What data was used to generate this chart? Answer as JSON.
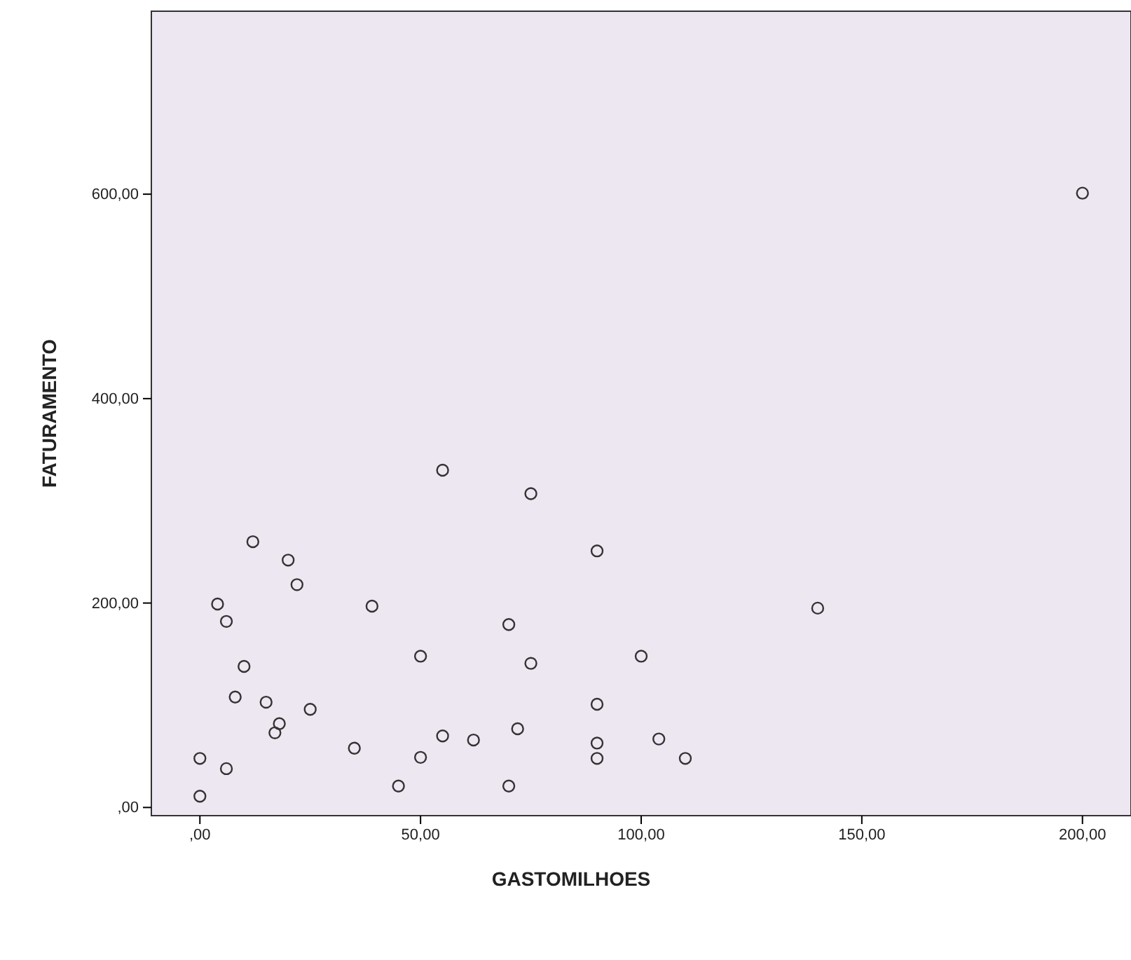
{
  "chart_data": {
    "type": "scatter",
    "xlabel": "GASTOMILHOES",
    "ylabel": "FATURAMENTO",
    "x": [
      0,
      0,
      6,
      4,
      6,
      8,
      10,
      12,
      15,
      17,
      18,
      20,
      22,
      25,
      35,
      39,
      45,
      50,
      50,
      55,
      55,
      62,
      70,
      70,
      72,
      75,
      75,
      90,
      90,
      90,
      90,
      100,
      104,
      110,
      140,
      200
    ],
    "values": [
      11,
      48,
      38,
      199,
      182,
      108,
      138,
      260,
      103,
      73,
      82,
      242,
      218,
      96,
      58,
      197,
      21,
      148,
      49,
      330,
      70,
      66,
      179,
      21,
      77,
      307,
      141,
      251,
      101,
      63,
      48,
      148,
      67,
      48,
      195,
      601
    ],
    "color": "#333333",
    "marker": "circle",
    "xlim": [
      -11,
      211
    ],
    "ylim": [
      -8,
      779
    ],
    "xticks": [
      {
        "value": 0,
        "label": ",00"
      },
      {
        "value": 50,
        "label": "50,00"
      },
      {
        "value": 100,
        "label": "100,00"
      },
      {
        "value": 150,
        "label": "150,00"
      },
      {
        "value": 200,
        "label": "200,00"
      }
    ],
    "yticks": [
      {
        "value": 0,
        "label": ",00"
      },
      {
        "value": 200,
        "label": "200,00"
      },
      {
        "value": 400,
        "label": "400,00"
      },
      {
        "value": 600,
        "label": "600,00"
      }
    ],
    "grid": false
  }
}
